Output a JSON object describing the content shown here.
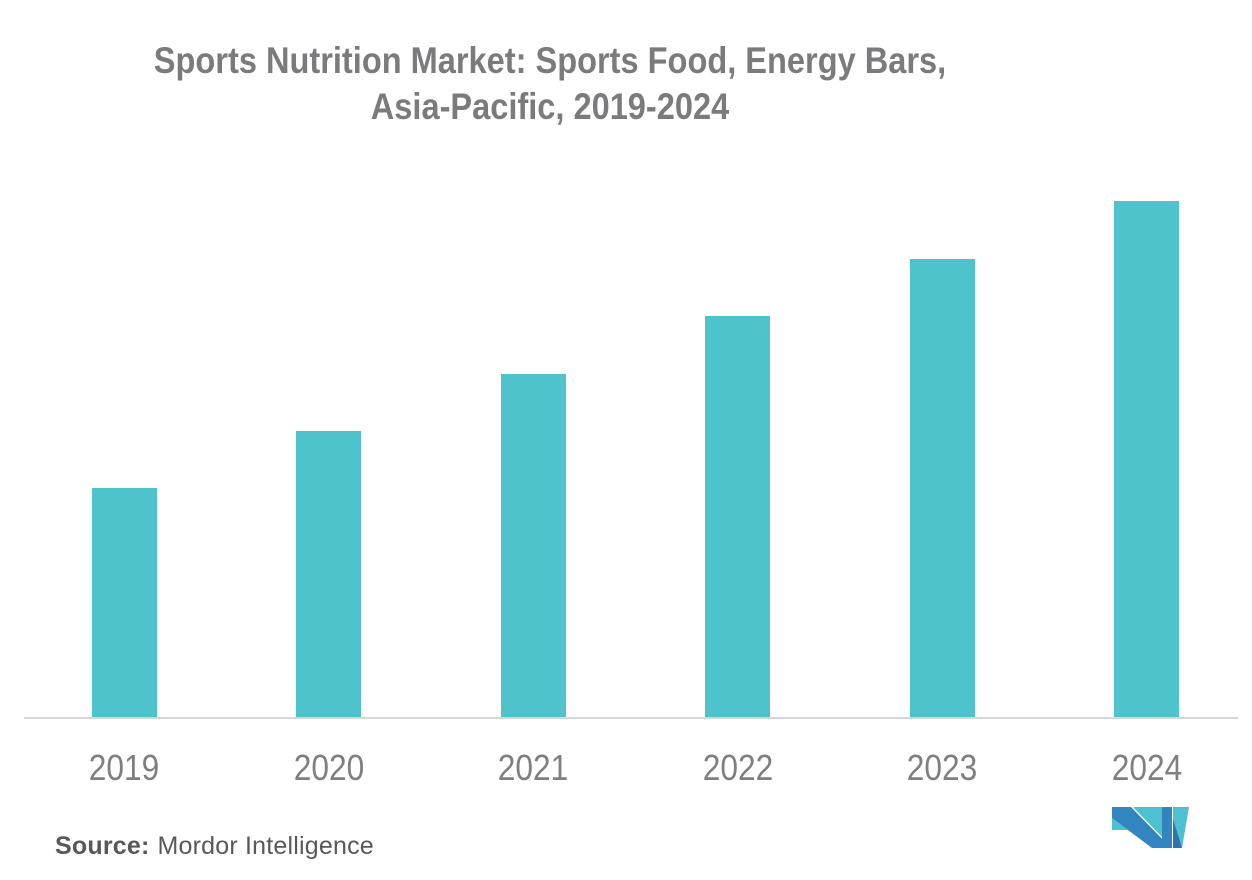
{
  "title": {
    "line1": "Sports Nutrition Market: Sports Food, Energy Bars,",
    "line2": "Asia-Pacific, 2019-2024"
  },
  "source": {
    "label": "Source:",
    "name": "Mordor Intelligence"
  },
  "colors": {
    "background": "#FFFFFF",
    "bar": "#4FC3CC",
    "title_text": "#7B7B7D",
    "axis_label": "#7F7F7F",
    "axis_line": "#D6D6D6",
    "source_text": "#58585A",
    "logo_blue": "#3385BF",
    "logo_teal": "#4FC0CF",
    "logo_dark_blue": "#2E74AE"
  },
  "chart_data": {
    "type": "bar",
    "title": "Sports Nutrition Market: Sports Food, Energy Bars, Asia-Pacific, 2019-2024",
    "categories": [
      "2019",
      "2020",
      "2021",
      "2022",
      "2023",
      "2024"
    ],
    "values": [
      4,
      5,
      6,
      7,
      8,
      9
    ],
    "value_note": "relative bar heights; no y-axis or value labels are shown in the figure",
    "xlabel": "",
    "ylabel": "",
    "y_axis_visible": false,
    "ylim": [
      0,
      9.6
    ],
    "grid": false,
    "legend_position": "none",
    "bar_color": "#4FC3CC"
  }
}
